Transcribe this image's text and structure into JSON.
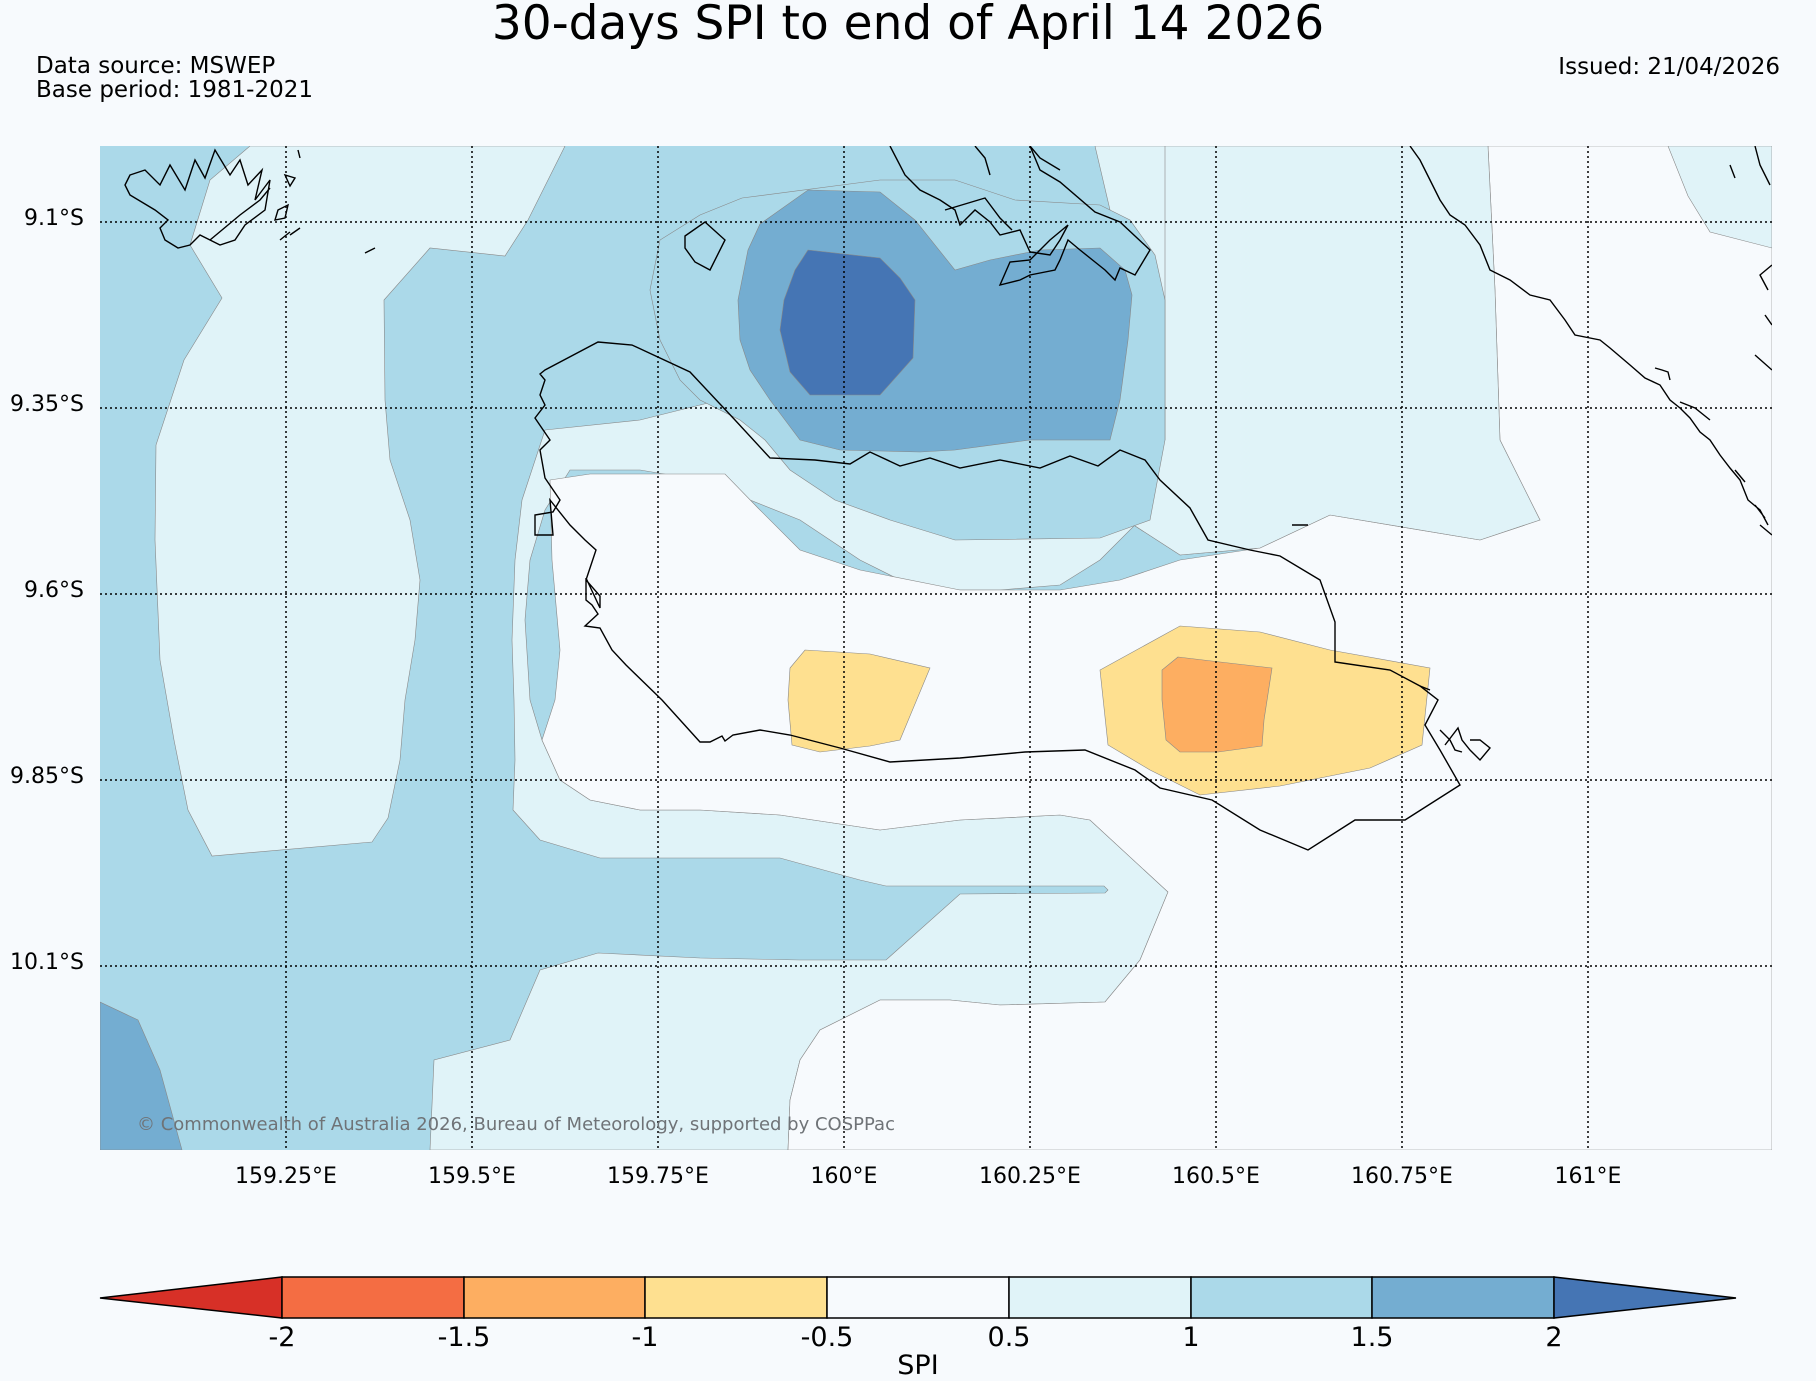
{
  "title": "30-days SPI to end of April 14 2026",
  "data_source": "Data source: MSWEP",
  "base_period": "Base period: 1981-2021",
  "issued": "Issued: 21/04/2026",
  "lat_labels": [
    "9.1°S",
    "9.35°S",
    "9.6°S",
    "9.85°S",
    "10.1°S"
  ],
  "lon_labels": [
    "159.25°E",
    "159.5°E",
    "159.75°E",
    "160°E",
    "160.25°E",
    "160.5°E",
    "160.75°E",
    "161°E"
  ],
  "colorbar": {
    "label": "SPI",
    "ticks": [
      "-2",
      "-1.5",
      "-1",
      "-0.5",
      "0.5",
      "1",
      "1.5",
      "2"
    ],
    "colors": {
      "below_-2": "#d73027",
      "-2_to_-1.5": "#f46d43",
      "-1.5_to_-1": "#fdae61",
      "-1_to_-0.5": "#fee090",
      "-0.5_to_0.5": "#f7fafd",
      "0.5_to_1": "#e0f3f8",
      "1_to_1.5": "#abd9e9",
      "1.5_to_2": "#74add1",
      "above_2": "#4575b4"
    }
  },
  "copyright": "© Commonwealth of Australia 2026, Bureau of Meteorology, supported by COSPPac"
}
